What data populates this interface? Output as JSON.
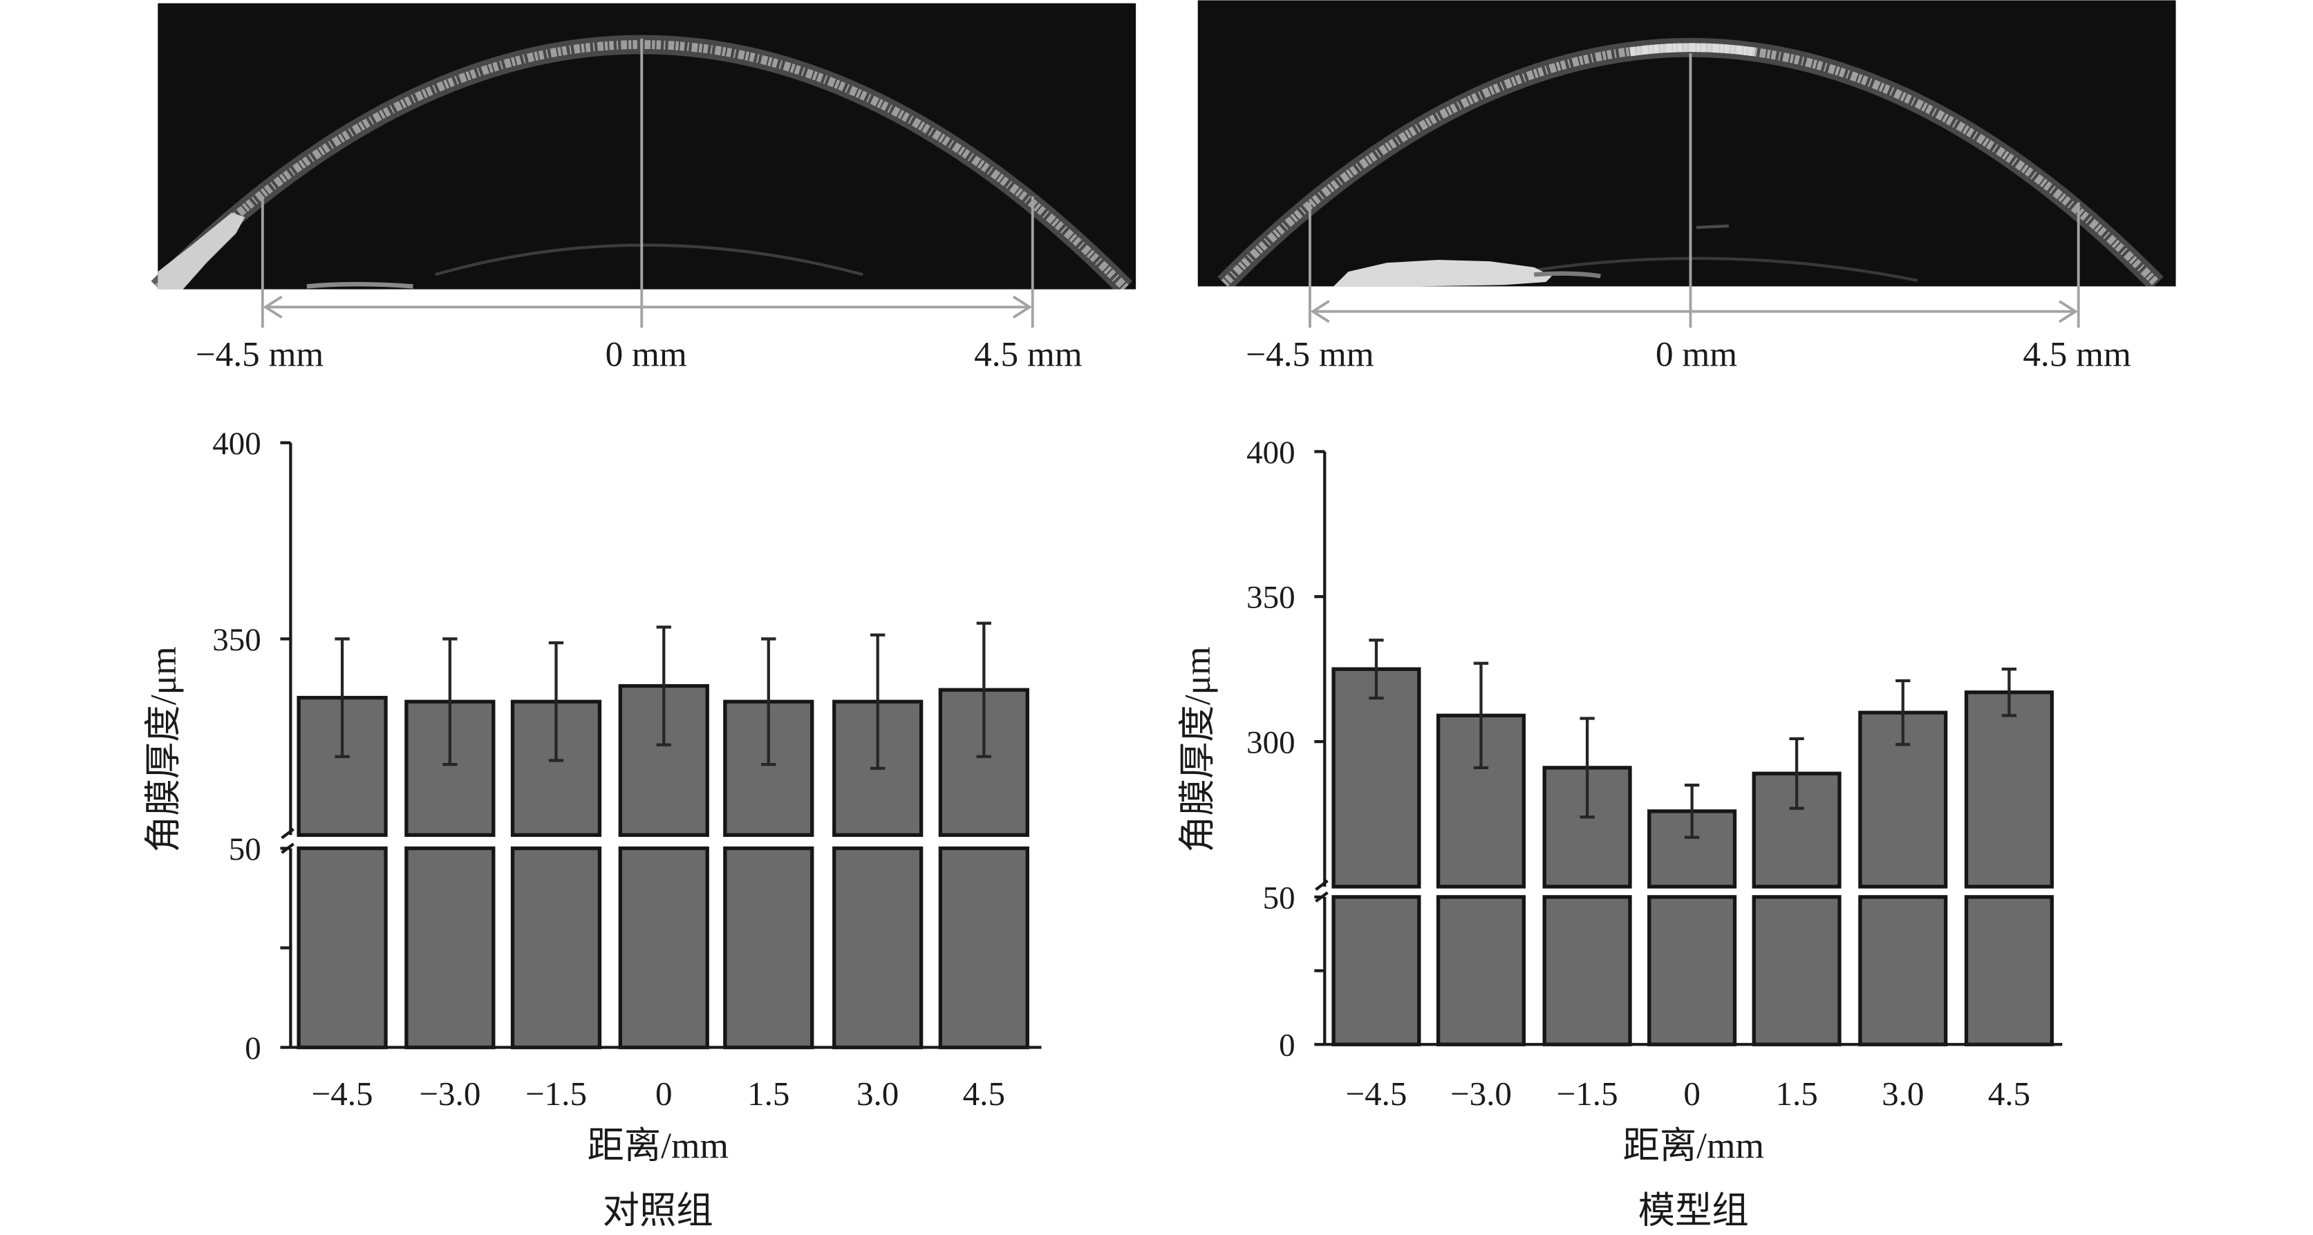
{
  "figure": {
    "oct_panels": [
      {
        "scale_labels": [
          "−4.5 mm",
          "0 mm",
          "4.5 mm"
        ]
      },
      {
        "scale_labels": [
          "−4.5 mm",
          "0 mm",
          "4.5 mm"
        ]
      }
    ]
  },
  "colors": {
    "bar_fill": "#6b6b6b",
    "bar_outline": "#161616",
    "error_bar": "#262626",
    "axis": "#1a1a1a",
    "oct_background": "#0f0f0f",
    "scale_line": "#a3a3a3"
  },
  "chart_data": [
    {
      "type": "bar",
      "caption": "对照组",
      "categories": [
        "−4.5",
        "−3.0",
        "−1.5",
        "0",
        "1.5",
        "3.0",
        "4.5"
      ],
      "values": [
        335,
        334,
        334,
        338,
        334,
        334,
        337
      ],
      "errors": [
        15,
        16,
        15,
        15,
        16,
        17,
        17
      ],
      "xlabel": "距离/mm",
      "ylabel": "角膜厚度/μm",
      "yticks": [
        0,
        50,
        350,
        400
      ],
      "y_segments": [
        [
          0,
          50
        ],
        [
          300,
          400
        ]
      ],
      "y_axis_break": true,
      "grid": false
    },
    {
      "type": "bar",
      "caption": "模型组",
      "categories": [
        "−4.5",
        "−3.0",
        "−1.5",
        "0",
        "1.5",
        "3.0",
        "4.5"
      ],
      "values": [
        325,
        309,
        291,
        276,
        289,
        310,
        317
      ],
      "errors": [
        10,
        18,
        17,
        9,
        12,
        11,
        8
      ],
      "xlabel": "距离/mm",
      "ylabel": "角膜厚度/μm",
      "yticks": [
        0,
        50,
        300,
        350,
        400
      ],
      "y_segments": [
        [
          0,
          50
        ],
        [
          250,
          400
        ]
      ],
      "y_axis_break": true,
      "grid": false
    }
  ]
}
